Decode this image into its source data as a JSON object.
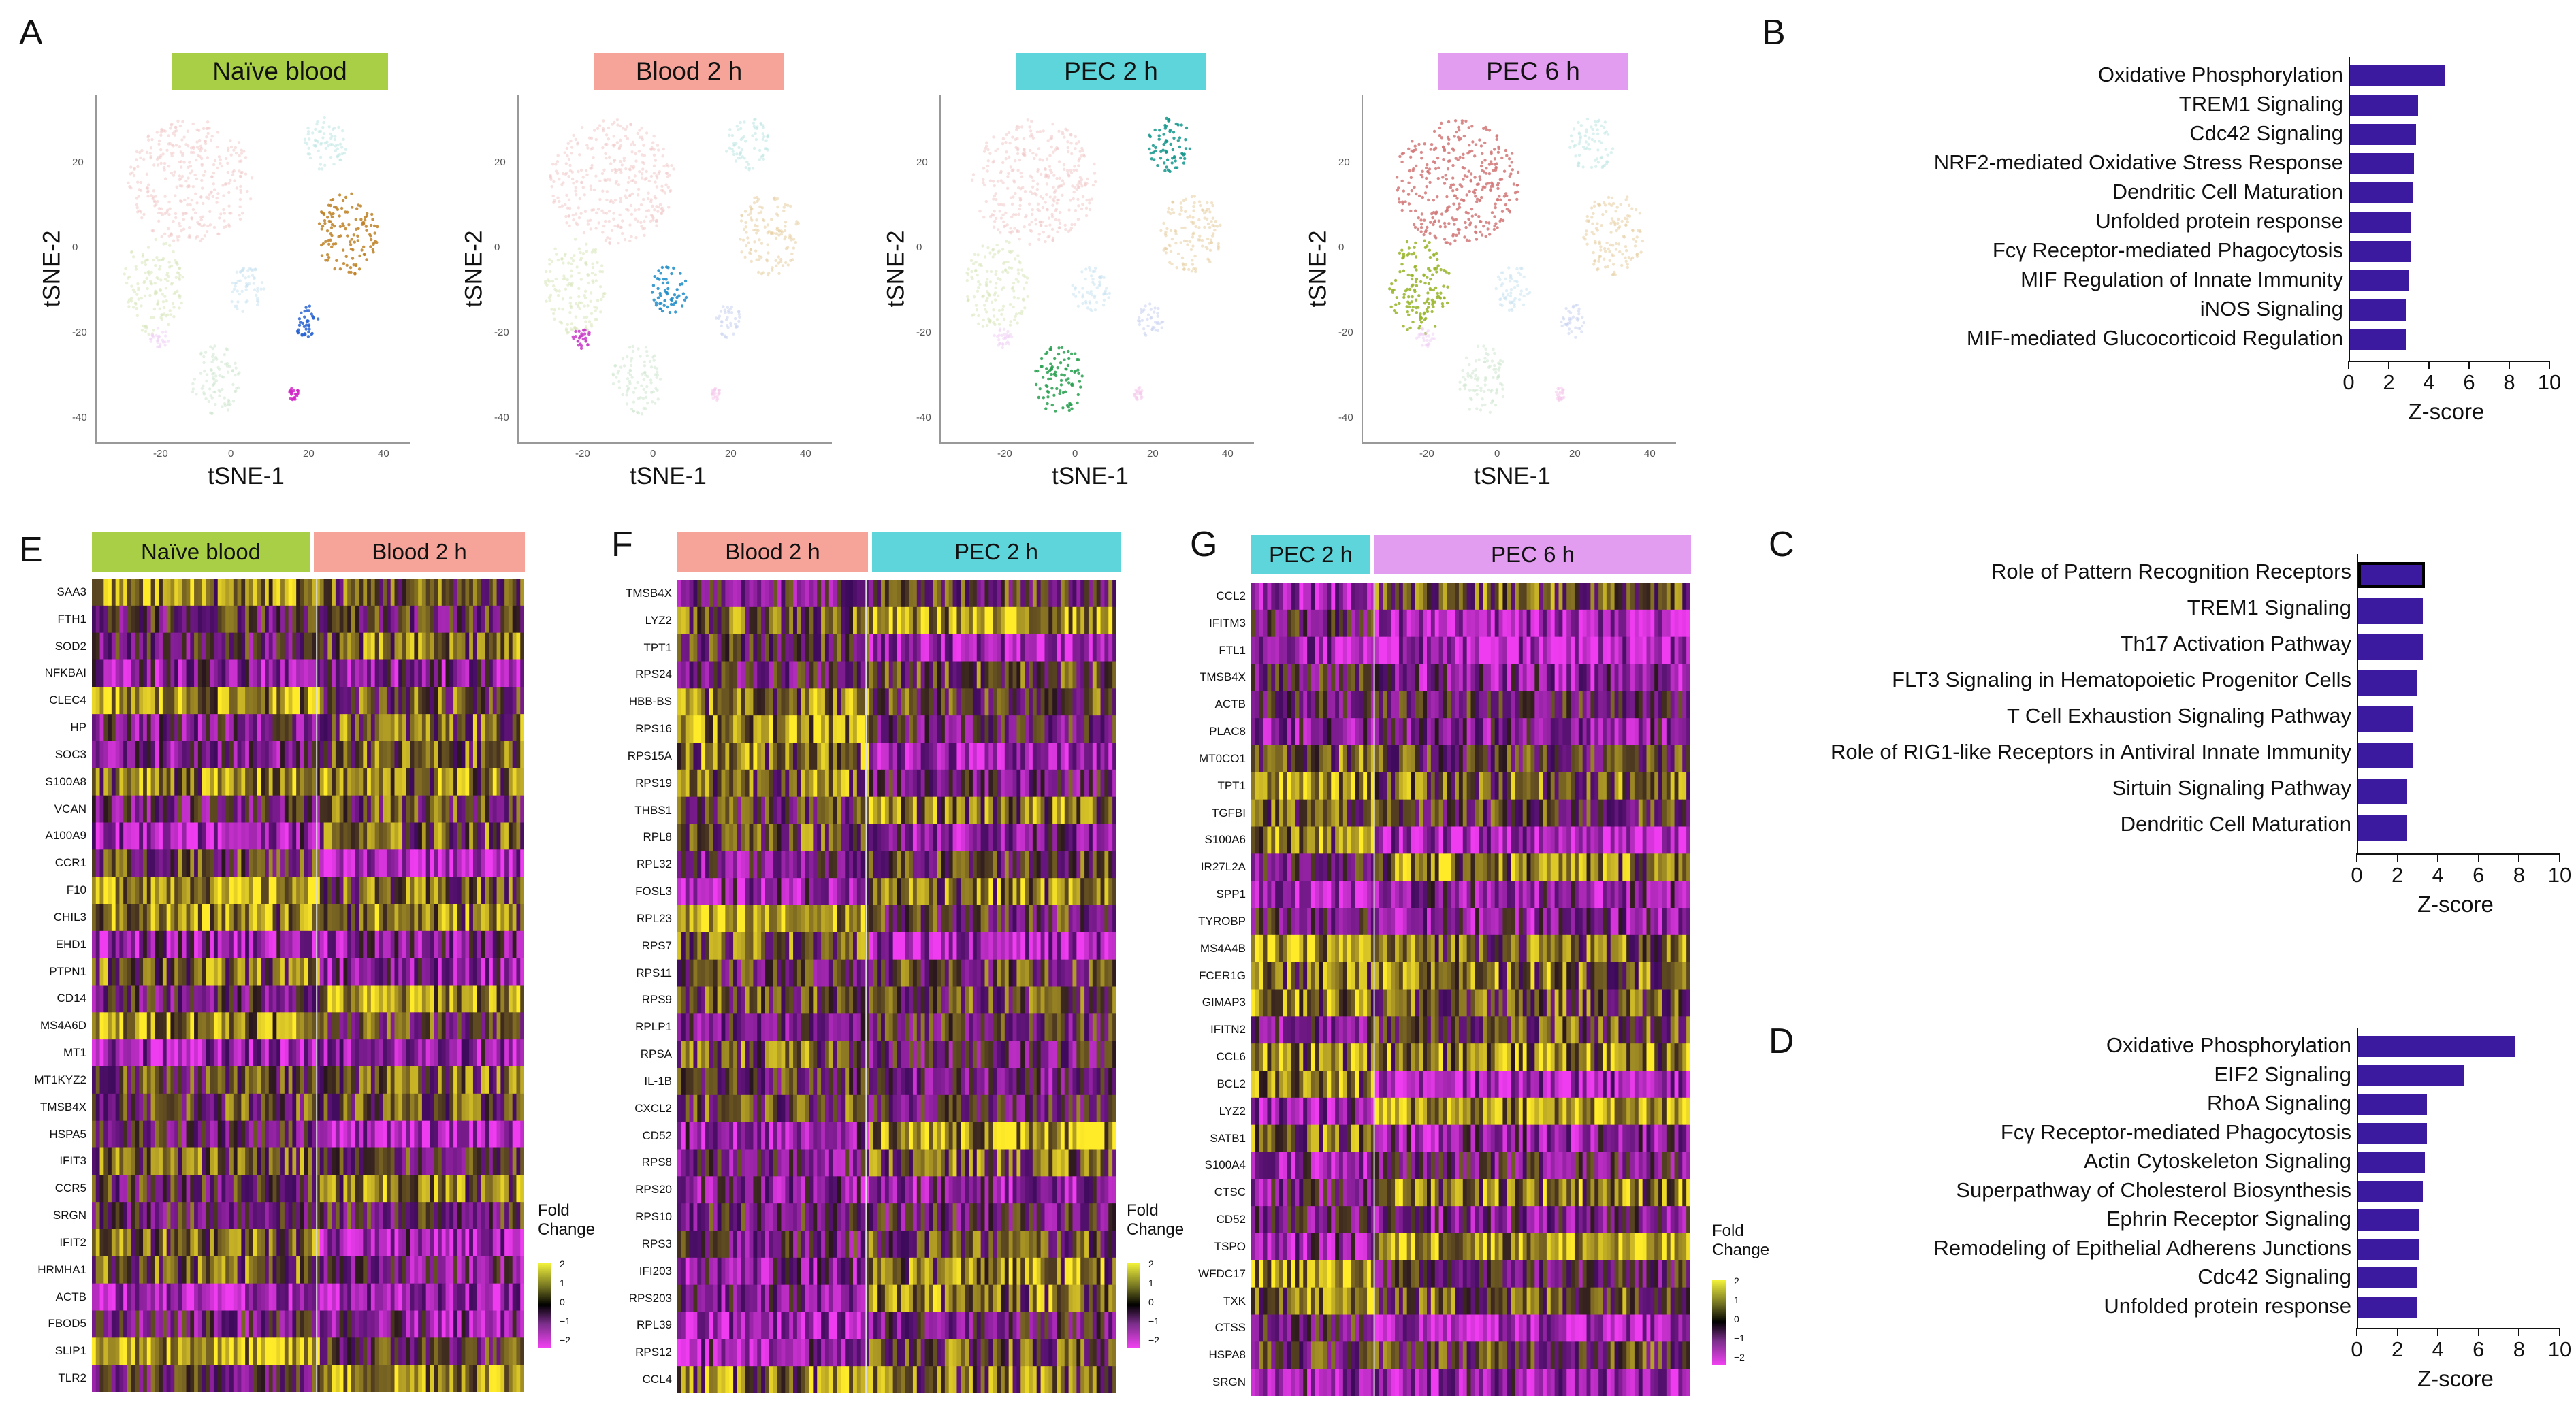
{
  "panel_letters": {
    "A": "A",
    "B": "B",
    "C": "C",
    "D": "D",
    "E": "E",
    "F": "F",
    "G": "G"
  },
  "tsne": {
    "x_label": "tSNE-1",
    "y_label": "tSNE-2",
    "x_ticks": [
      "-20",
      "0",
      "20",
      "40"
    ],
    "y_ticks": [
      "20",
      "0",
      "-20",
      "-40"
    ],
    "panels": [
      {
        "title": "Naïve blood",
        "color": "#a8cf45"
      },
      {
        "title": "Blood 2 h",
        "color": "#f6a39a"
      },
      {
        "title": "PEC 2 h",
        "color": "#5ed5da"
      },
      {
        "title": "PEC 6 h",
        "color": "#e29cf0"
      }
    ]
  },
  "heatmaps": {
    "legend_title": "Fold Change",
    "legend_ticks": [
      "2",
      "1",
      "0",
      "−1",
      "−2"
    ],
    "E": {
      "groups": [
        {
          "label": "Naïve blood",
          "color": "#a8cf45"
        },
        {
          "label": "Blood 2 h",
          "color": "#f6a39a"
        }
      ],
      "genes": [
        "SAA3",
        "FTH1",
        "SOD2",
        "NFKBAI",
        "CLEC4",
        "HP",
        "SOC3",
        "S100A8",
        "VCAN",
        "A100A9",
        "CCR1",
        "F10",
        "CHIL3",
        "EHD1",
        "PTPN1",
        "CD14",
        "MS4A6D",
        "MT1",
        "MT1KYZ2",
        "TMSB4X",
        "HSPA5",
        "IFIT3",
        "CCR5",
        "SRGN",
        "IFIT2",
        "HRMHA1",
        "ACTB",
        "FBOD5",
        "SLIP1",
        "TLR2"
      ]
    },
    "F": {
      "groups": [
        {
          "label": "Blood 2 h",
          "color": "#f6a39a"
        },
        {
          "label": "PEC 2 h",
          "color": "#5ed5da"
        }
      ],
      "genes": [
        "TMSB4X",
        "LYZ2",
        "TPT1",
        "RPS24",
        "HBB-BS",
        "RPS16",
        "RPS15A",
        "RPS19",
        "THBS1",
        "RPL8",
        "RPL32",
        "FOSL3",
        "RPL23",
        "RPS7",
        "RPS11",
        "RPS9",
        "RPLP1",
        "RPSA",
        "IL-1B",
        "CXCL2",
        "CD52",
        "RPS8",
        "RPS20",
        "RPS10",
        "RPS3",
        "IFI203",
        "RPS203",
        "RPL39",
        "RPS12",
        "CCL4"
      ]
    },
    "G": {
      "groups": [
        {
          "label": "PEC 2 h",
          "color": "#5ed5da"
        },
        {
          "label": "PEC 6 h",
          "color": "#e29cf0"
        }
      ],
      "genes": [
        "CCL2",
        "IFITM3",
        "FTL1",
        "TMSB4X",
        "ACTB",
        "PLAC8",
        "MT0CO1",
        "TPT1",
        "TGFBI",
        "S100A6",
        "IR27L2A",
        "SPP1",
        "TYROBP",
        "MS4A4B",
        "FCER1G",
        "GIMAP3",
        "IFITN2",
        "CCL6",
        "BCL2",
        "LYZ2",
        "SATB1",
        "S100A4",
        "CTSC",
        "CD52",
        "TSPO",
        "WFDC17",
        "TXK",
        "CTSS",
        "HSPA8",
        "SRGN"
      ]
    }
  },
  "chart_data": [
    {
      "type": "bar",
      "panel": "B",
      "orientation": "horizontal",
      "categories": [
        "Oxidative Phosphorylation",
        "TREM1 Signaling",
        "Cdc42 Signaling",
        "NRF2-mediated Oxidative Stress Response",
        "Dendritic Cell Maturation",
        "Unfolded protein response",
        "Fcγ Receptor-mediated Phagocytosis",
        "MIF Regulation of Innate Immunity",
        "iNOS Signaling",
        "MIF-mediated Glucocorticoid Regulation"
      ],
      "values": [
        4.7,
        3.4,
        3.3,
        3.2,
        3.1,
        3.0,
        3.0,
        2.9,
        2.8,
        2.8
      ],
      "xlabel": "Z-score",
      "xlim": [
        0,
        10
      ],
      "x_ticks": [
        "0",
        "2",
        "4",
        "6",
        "8",
        "10"
      ]
    },
    {
      "type": "bar",
      "panel": "C",
      "orientation": "horizontal",
      "categories": [
        "Role of Pattern Recognition Receptors",
        "TREM1 Signaling",
        "Th17 Activation Pathway",
        "FLT3 Signaling in Hematopoietic Progenitor Cells",
        "T Cell Exhaustion Signaling Pathway",
        "Role of RIG1-like Receptors in Antiviral Innate Immunity",
        "Sirtuin Signaling Pathway",
        "Dendritic Cell Maturation"
      ],
      "values": [
        3.3,
        3.2,
        3.2,
        2.9,
        2.7,
        2.7,
        2.4,
        2.4
      ],
      "highlighted_index": 0,
      "xlabel": "Z-score",
      "xlim": [
        0,
        10
      ],
      "x_ticks": [
        "0",
        "2",
        "4",
        "6",
        "8",
        "10"
      ]
    },
    {
      "type": "bar",
      "panel": "D",
      "orientation": "horizontal",
      "categories": [
        "Oxidative Phosphorylation",
        "EIF2 Signaling",
        "RhoA Signaling",
        "Fcγ Receptor-mediated Phagocytosis",
        "Actin Cytoskeleton Signaling",
        "Superpathway of Cholesterol Biosynthesis",
        "Ephrin Receptor Signaling",
        "Remodeling of Epithelial Adherens Junctions",
        "Cdc42 Signaling",
        "Unfolded protein response"
      ],
      "values": [
        7.7,
        5.2,
        3.4,
        3.4,
        3.3,
        3.2,
        3.0,
        3.0,
        2.9,
        2.9
      ],
      "xlabel": "Z-score",
      "xlim": [
        0,
        10
      ],
      "x_ticks": [
        "0",
        "2",
        "4",
        "6",
        "8",
        "10"
      ]
    }
  ]
}
